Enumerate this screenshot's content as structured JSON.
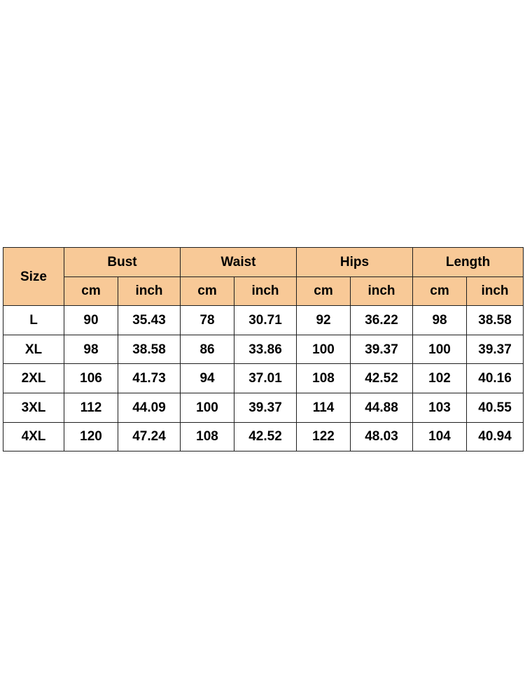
{
  "table": {
    "size_header": "Size",
    "groups": [
      "Bust",
      "Waist",
      "Hips",
      "Length"
    ],
    "units": [
      "cm",
      "inch",
      "cm",
      "inch",
      "cm",
      "inch",
      "cm",
      "inch"
    ],
    "rows": [
      {
        "size": "L",
        "values": [
          "90",
          "35.43",
          "78",
          "30.71",
          "92",
          "36.22",
          "98",
          "38.58"
        ]
      },
      {
        "size": "XL",
        "values": [
          "98",
          "38.58",
          "86",
          "33.86",
          "100",
          "39.37",
          "100",
          "39.37"
        ]
      },
      {
        "size": "2XL",
        "values": [
          "106",
          "41.73",
          "94",
          "37.01",
          "108",
          "42.52",
          "102",
          "40.16"
        ]
      },
      {
        "size": "3XL",
        "values": [
          "112",
          "44.09",
          "100",
          "39.37",
          "114",
          "44.88",
          "103",
          "40.55"
        ]
      },
      {
        "size": "4XL",
        "values": [
          "120",
          "47.24",
          "108",
          "42.52",
          "122",
          "48.03",
          "104",
          "40.94"
        ]
      }
    ]
  },
  "colors": {
    "header_background": "#f8c997",
    "border": "#1f1f1f",
    "text": "#000000"
  }
}
